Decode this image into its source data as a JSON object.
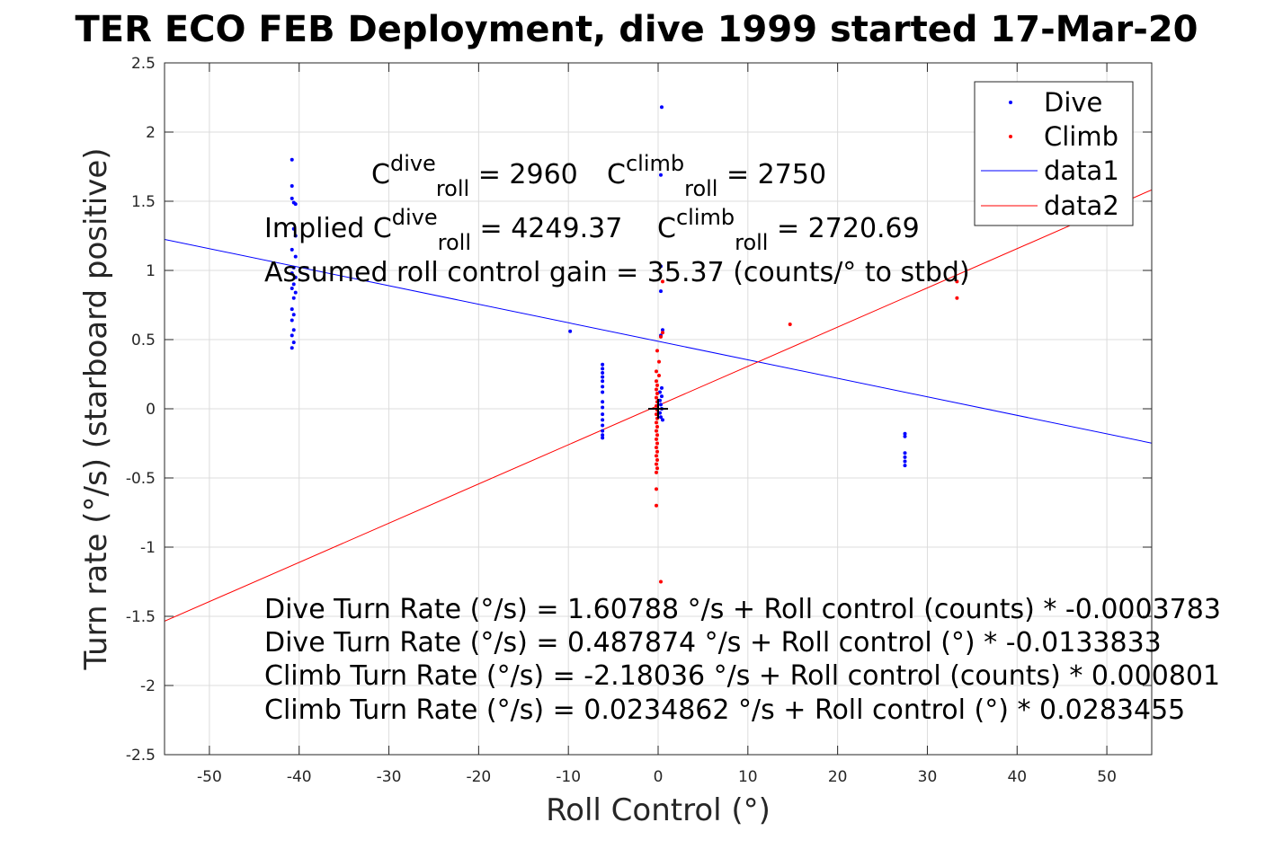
{
  "chart_data": {
    "type": "scatter",
    "title": "TER ECO FEB Deployment, dive 1999 started 17-Mar-20",
    "xlabel": "Roll Control (°)",
    "ylabel": "Turn rate (°/s) (starboard positive)",
    "xlim": [
      -55,
      55
    ],
    "ylim": [
      -2.5,
      2.5
    ],
    "xticks": [
      -50,
      -40,
      -30,
      -20,
      -10,
      0,
      10,
      20,
      30,
      40,
      50
    ],
    "yticks": [
      -2.5,
      -2,
      -1.5,
      -1,
      -0.5,
      0,
      0.5,
      1,
      1.5,
      2,
      2.5
    ],
    "grid": true,
    "legend_position": "top-right",
    "legend": [
      "Dive",
      "Climb",
      "data1",
      "data2"
    ],
    "series": [
      {
        "name": "Dive",
        "kind": "points",
        "color": "#0000ff",
        "points": [
          [
            -40.8,
            1.8
          ],
          [
            -40.8,
            1.61
          ],
          [
            -40.8,
            1.52
          ],
          [
            -40.6,
            1.49
          ],
          [
            -40.4,
            1.48
          ],
          [
            -40.6,
            1.3
          ],
          [
            -40.4,
            1.25
          ],
          [
            -40.8,
            1.15
          ],
          [
            -40.4,
            1.1
          ],
          [
            -40.6,
            1.02
          ],
          [
            -40.8,
            0.98
          ],
          [
            -40.4,
            0.95
          ],
          [
            -40.6,
            0.9
          ],
          [
            -40.8,
            0.87
          ],
          [
            -40.4,
            0.84
          ],
          [
            -40.6,
            0.8
          ],
          [
            -40.8,
            0.72
          ],
          [
            -40.6,
            0.68
          ],
          [
            -40.8,
            0.64
          ],
          [
            -40.6,
            0.57
          ],
          [
            -40.8,
            0.53
          ],
          [
            -40.6,
            0.48
          ],
          [
            -40.8,
            0.44
          ],
          [
            -9.8,
            0.56
          ],
          [
            -6.2,
            0.32
          ],
          [
            -6.2,
            0.29
          ],
          [
            -6.2,
            0.26
          ],
          [
            -6.2,
            0.23
          ],
          [
            -6.2,
            0.2
          ],
          [
            -6.2,
            0.16
          ],
          [
            -6.2,
            0.12
          ],
          [
            -6.2,
            0.05
          ],
          [
            -6.2,
            0.01
          ],
          [
            -6.2,
            -0.04
          ],
          [
            -6.2,
            -0.08
          ],
          [
            -6.2,
            -0.12
          ],
          [
            -6.2,
            -0.16
          ],
          [
            -6.2,
            -0.19
          ],
          [
            -6.2,
            -0.21
          ],
          [
            0.4,
            2.18
          ],
          [
            0.3,
            1.69
          ],
          [
            0.3,
            1.03
          ],
          [
            0.3,
            0.85
          ],
          [
            0.5,
            0.57
          ],
          [
            0.3,
            0.53
          ],
          [
            0.4,
            0.15
          ],
          [
            0.2,
            0.12
          ],
          [
            0.4,
            0.09
          ],
          [
            0.2,
            0.06
          ],
          [
            0.3,
            0.03
          ],
          [
            0.4,
            0.0
          ],
          [
            0.2,
            -0.03
          ],
          [
            0.3,
            -0.06
          ],
          [
            0.5,
            -0.08
          ],
          [
            27.5,
            -0.18
          ],
          [
            27.5,
            -0.2
          ],
          [
            27.5,
            -0.32
          ],
          [
            27.5,
            -0.35
          ],
          [
            27.5,
            -0.38
          ],
          [
            27.5,
            -0.41
          ]
        ]
      },
      {
        "name": "Climb",
        "kind": "points",
        "color": "#ff0000",
        "points": [
          [
            0.5,
            0.92
          ],
          [
            0.5,
            0.55
          ],
          [
            0.3,
            0.52
          ],
          [
            -0.1,
            0.42
          ],
          [
            0.1,
            0.34
          ],
          [
            -0.2,
            0.27
          ],
          [
            0.1,
            0.24
          ],
          [
            -0.2,
            0.2
          ],
          [
            -0.1,
            0.17
          ],
          [
            -0.2,
            0.14
          ],
          [
            -0.1,
            0.11
          ],
          [
            -0.2,
            0.08
          ],
          [
            -0.1,
            0.05
          ],
          [
            -0.2,
            0.02
          ],
          [
            -0.1,
            -0.01
          ],
          [
            -0.2,
            -0.04
          ],
          [
            -0.1,
            -0.07
          ],
          [
            -0.2,
            -0.1
          ],
          [
            -0.1,
            -0.13
          ],
          [
            -0.2,
            -0.16
          ],
          [
            -0.1,
            -0.19
          ],
          [
            -0.2,
            -0.22
          ],
          [
            -0.1,
            -0.25
          ],
          [
            -0.2,
            -0.28
          ],
          [
            -0.1,
            -0.31
          ],
          [
            -0.2,
            -0.34
          ],
          [
            -0.1,
            -0.37
          ],
          [
            -0.2,
            -0.4
          ],
          [
            -0.1,
            -0.43
          ],
          [
            -0.2,
            -0.46
          ],
          [
            -0.2,
            -0.58
          ],
          [
            -0.2,
            -0.7
          ],
          [
            0.3,
            -1.25
          ],
          [
            14.7,
            0.61
          ],
          [
            33.3,
            0.8
          ],
          [
            33.3,
            0.92
          ]
        ]
      },
      {
        "name": "data1",
        "kind": "line",
        "color": "#0000ff",
        "intercept": 0.487874,
        "slope": -0.0133833
      },
      {
        "name": "data2",
        "kind": "line",
        "color": "#ff0000",
        "intercept": 0.0234862,
        "slope": 0.0283455
      }
    ],
    "marker": {
      "kind": "plus",
      "x": 0,
      "y": 0,
      "color": "#000000"
    },
    "annotations": {
      "c_dive": {
        "prefix": "C",
        "sup": "dive",
        "sub": "roll",
        "value": " = 2960"
      },
      "c_climb": {
        "prefix": "C",
        "sup": "climb",
        "sub": "roll",
        "value": " = 2750"
      },
      "implied_dive": {
        "prefix": "Implied C",
        "sup": "dive",
        "sub": "roll",
        "value": " = 4249.37"
      },
      "implied_climb": {
        "prefix": "C",
        "sup": "climb",
        "sub": "roll",
        "value": " = 2720.69"
      },
      "gain": "Assumed roll control gain = 35.37 (counts/° to stbd)",
      "eq1": "Dive Turn Rate (°/s) = 1.60788 °/s + Roll control (counts) * -0.0003783",
      "eq2": "Dive Turn Rate (°/s) = 0.487874 °/s + Roll control (°) * -0.0133833",
      "eq3": "Climb Turn Rate (°/s) = -2.18036 °/s + Roll control (counts) * 0.000801",
      "eq4": "Climb Turn Rate (°/s) = 0.0234862 °/s + Roll control (°) * 0.0283455"
    }
  }
}
